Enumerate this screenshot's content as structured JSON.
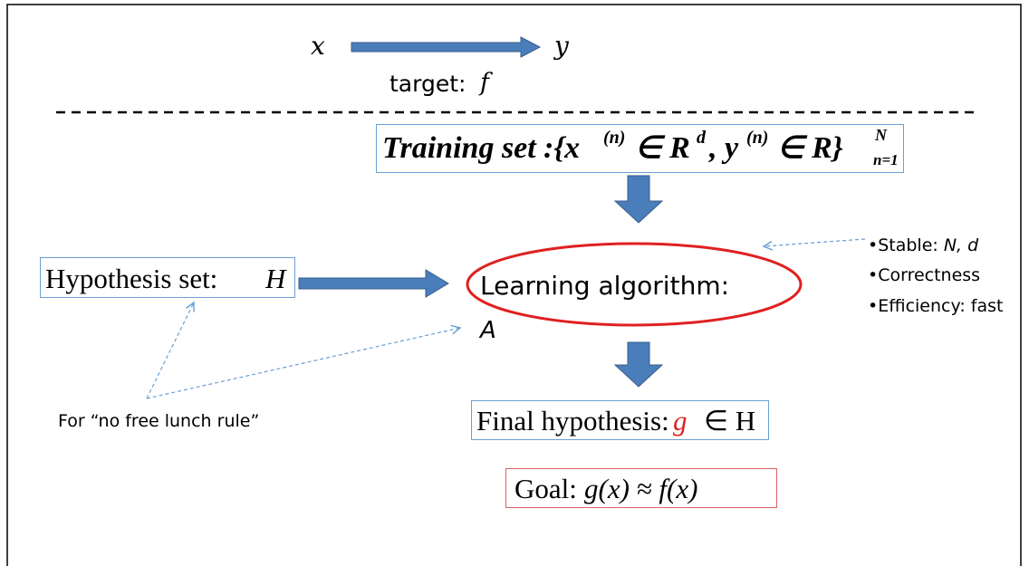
{
  "top": {
    "input": "x",
    "output": "y",
    "target_label": "target:",
    "target_fn": "f"
  },
  "training": {
    "label": "Training set",
    "formula": {
      "open": ":{x",
      "sup1": "(n)",
      "mid1": "∈ R",
      "sup2": "d",
      "mid2": ", y",
      "sup3": "(n)",
      "mid3": "∈ R}",
      "upper": "N",
      "lower": "n=1"
    }
  },
  "hypothesis": {
    "label": "Hypothesis set:",
    "symbol": "H"
  },
  "algorithm": {
    "label": "Learning algorithm:",
    "symbol": "A"
  },
  "properties": {
    "stable_label": "•Stable:",
    "stable_vars": "N, d",
    "correctness": "•Correctness",
    "efficiency": "•Efficiency: fast"
  },
  "note": "For “no free lunch rule”",
  "final": {
    "label": "Final hypothesis:",
    "symbol": "g",
    "rest": "∈ H"
  },
  "goal": {
    "label": "Goal:",
    "formula": "g(x) ≈ f(x)"
  }
}
